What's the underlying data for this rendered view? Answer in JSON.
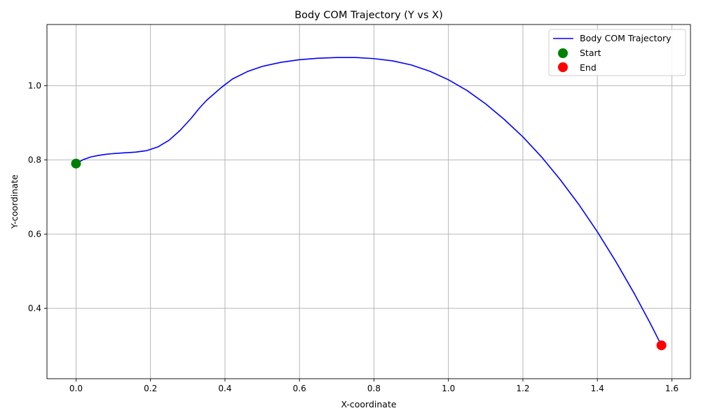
{
  "chart_data": {
    "type": "line",
    "title": "Body COM Trajectory (Y vs X)",
    "xlabel": "X-coordinate",
    "ylabel": "Y-coordinate",
    "xlim": [
      -0.078,
      1.65
    ],
    "ylim": [
      0.21,
      1.165
    ],
    "xticks": [
      0.0,
      0.2,
      0.4,
      0.6,
      0.8,
      1.0,
      1.2,
      1.4,
      1.6
    ],
    "xtick_labels": [
      "0.0",
      "0.2",
      "0.4",
      "0.6",
      "0.8",
      "1.0",
      "1.2",
      "1.4",
      "1.6"
    ],
    "yticks": [
      0.4,
      0.6,
      0.8,
      1.0
    ],
    "ytick_labels": [
      "0.4",
      "0.6",
      "0.8",
      "1.0"
    ],
    "grid": true,
    "legend_position": "top-right",
    "series": [
      {
        "name": "Body COM Trajectory",
        "color": "#0000ff",
        "x": [
          0.0,
          0.02,
          0.04,
          0.06,
          0.08,
          0.1,
          0.13,
          0.16,
          0.19,
          0.22,
          0.25,
          0.28,
          0.31,
          0.33,
          0.35,
          0.39,
          0.42,
          0.46,
          0.5,
          0.55,
          0.6,
          0.65,
          0.7,
          0.75,
          0.8,
          0.85,
          0.9,
          0.95,
          1.0,
          1.05,
          1.1,
          1.15,
          1.2,
          1.25,
          1.3,
          1.35,
          1.4,
          1.45,
          1.5,
          1.54,
          1.572
        ],
        "y": [
          0.79,
          0.801,
          0.808,
          0.812,
          0.815,
          0.817,
          0.819,
          0.821,
          0.825,
          0.835,
          0.853,
          0.88,
          0.913,
          0.938,
          0.96,
          0.995,
          1.018,
          1.038,
          1.052,
          1.063,
          1.07,
          1.074,
          1.076,
          1.076,
          1.073,
          1.067,
          1.056,
          1.039,
          1.016,
          0.987,
          0.951,
          0.909,
          0.862,
          0.808,
          0.747,
          0.68,
          0.606,
          0.525,
          0.438,
          0.363,
          0.3
        ]
      }
    ],
    "markers": [
      {
        "name": "Start",
        "color": "#008000",
        "x": 0.0,
        "y": 0.79
      },
      {
        "name": "End",
        "color": "#ff0000",
        "x": 1.572,
        "y": 0.3
      }
    ]
  }
}
